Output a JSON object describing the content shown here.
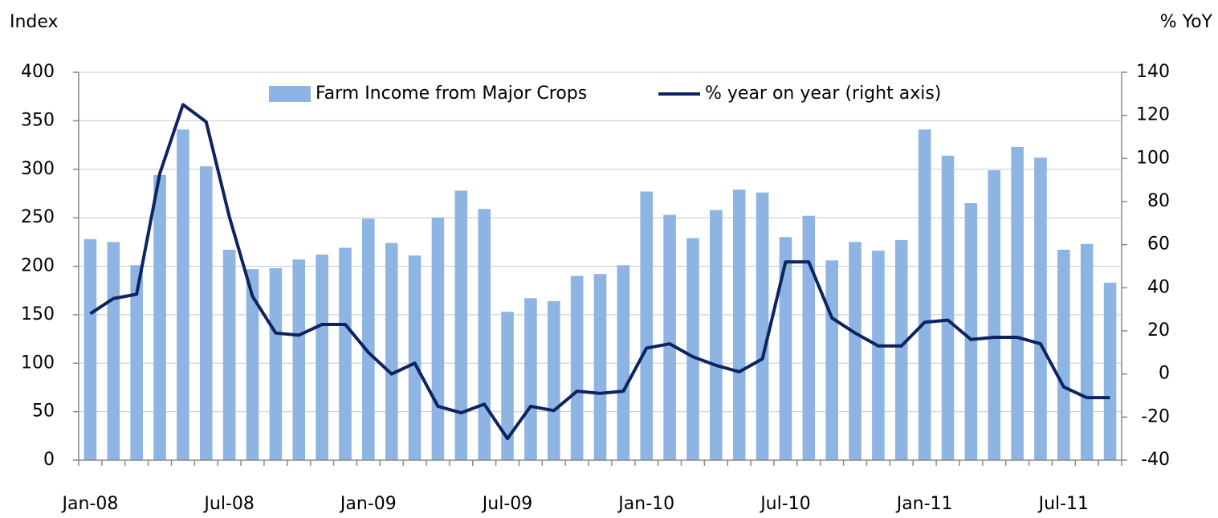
{
  "chart_data": {
    "type": "bar_line",
    "y_label": "Index",
    "y2_label": "% YoY",
    "categories": [
      "Jan-08",
      null,
      null,
      null,
      null,
      null,
      "Jul-08",
      null,
      null,
      null,
      null,
      null,
      "Jan-09",
      null,
      null,
      null,
      null,
      null,
      "Jul-09",
      null,
      null,
      null,
      null,
      null,
      "Jan-10",
      null,
      null,
      null,
      null,
      null,
      "Jul-10",
      null,
      null,
      null,
      null,
      null,
      "Jan-11",
      null,
      null,
      null,
      null,
      null,
      "Jul-11",
      null,
      null
    ],
    "series": [
      {
        "name": "Farm Income from Major Crops",
        "type": "bar",
        "color": "#8db4e2",
        "values": [
          228,
          225,
          201,
          294,
          341,
          303,
          217,
          197,
          198,
          207,
          212,
          219,
          249,
          224,
          211,
          250,
          278,
          259,
          153,
          167,
          164,
          190,
          192,
          201,
          277,
          253,
          229,
          258,
          279,
          276,
          230,
          252,
          206,
          225,
          216,
          227,
          341,
          314,
          265,
          299,
          323,
          312,
          217,
          223,
          183
        ]
      },
      {
        "name": "% year on year (right axis)",
        "type": "line",
        "axis": "y2",
        "color": "#0d2463",
        "values": [
          28,
          35,
          37,
          93,
          125,
          117,
          73,
          36,
          19,
          18,
          23,
          23,
          10,
          0,
          5,
          -15,
          -18,
          -14,
          -30,
          -15,
          -17,
          -8,
          -9,
          -8,
          12,
          14,
          8,
          4,
          1,
          7,
          52,
          52,
          26,
          19,
          13,
          13,
          24,
          25,
          16,
          17,
          17,
          14,
          -6,
          -11,
          -11
        ]
      }
    ],
    "ylim": [
      0,
      400
    ],
    "yticks": [
      0,
      50,
      100,
      150,
      200,
      250,
      300,
      350,
      400
    ],
    "y2lim": [
      -40,
      140
    ],
    "y2ticks": [
      -40,
      -20,
      0,
      20,
      40,
      60,
      80,
      100,
      120,
      140
    ],
    "grid": true,
    "legend": "top"
  }
}
